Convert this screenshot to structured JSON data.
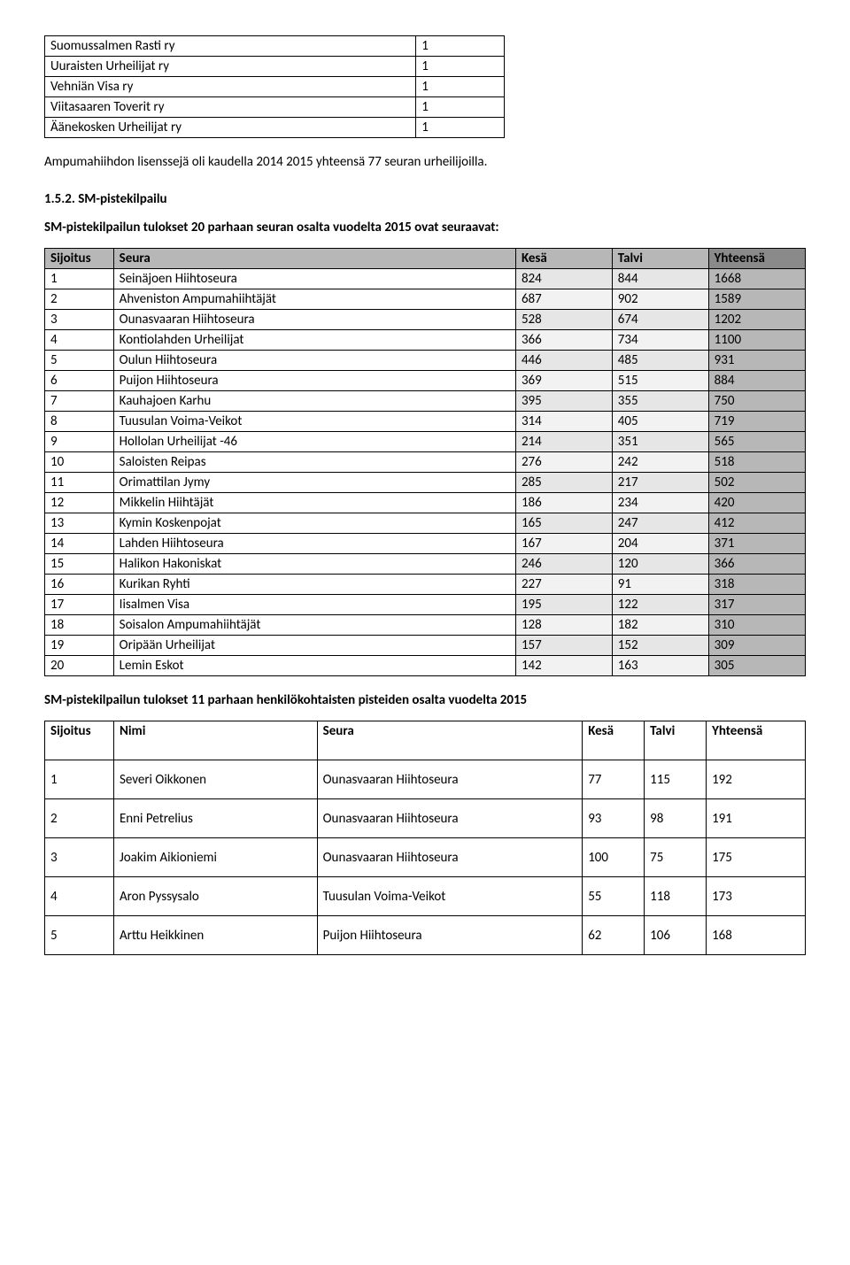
{
  "small_table": {
    "rows": [
      [
        "Suomussalmen Rasti ry",
        "1"
      ],
      [
        "Uuraisten Urheilijat ry",
        "1"
      ],
      [
        "Vehniän Visa ry",
        "1"
      ],
      [
        "Viitasaaren Toverit ry",
        "1"
      ],
      [
        "Äänekosken Urheilijat ry",
        "1"
      ]
    ]
  },
  "intro_text": "Ampumahiihdon lisenssejä oli kaudella 2014 2015 yhteensä 77 seuran urheilijoilla.",
  "section_number": "1.5.2. SM-pistekilpailu",
  "team_results_intro": "SM-pistekilpailun tulokset 20 parhaan seuran osalta vuodelta 2015 ovat seuraavat:",
  "team_table": {
    "headers": [
      "Sijoitus",
      "Seura",
      "Kesä",
      "Talvi",
      "Yhteensä"
    ],
    "header_bg": [
      "#b7b7b7",
      "#b7b7b7",
      "#b7b7b7",
      "#b7b7b7",
      "#8a8a8a"
    ],
    "rows": [
      {
        "c": [
          "1",
          "Seinäjoen Hiihtoseura",
          "824",
          "844",
          "1668"
        ],
        "bg": [
          "#ffffff",
          "#ffffff",
          "#e6e6e6",
          "#e6e6e6",
          "#b7b7b7"
        ]
      },
      {
        "c": [
          "2",
          "Ahveniston Ampumahiihtäjät",
          "687",
          "902",
          "1589"
        ],
        "bg": [
          "#ffffff",
          "#ffffff",
          "#f2f2f2",
          "#f2f2f2",
          "#b7b7b7"
        ]
      },
      {
        "c": [
          "3",
          "Ounasvaaran Hiihtoseura",
          "528",
          "674",
          "1202"
        ],
        "bg": [
          "#ffffff",
          "#ffffff",
          "#e6e6e6",
          "#e6e6e6",
          "#b7b7b7"
        ]
      },
      {
        "c": [
          "4",
          "Kontiolahden Urheilijat",
          "366",
          "734",
          "1100"
        ],
        "bg": [
          "#ffffff",
          "#ffffff",
          "#f2f2f2",
          "#f2f2f2",
          "#b7b7b7"
        ]
      },
      {
        "c": [
          "5",
          "Oulun Hiihtoseura",
          "446",
          "485",
          "931"
        ],
        "bg": [
          "#ffffff",
          "#ffffff",
          "#e6e6e6",
          "#e6e6e6",
          "#b7b7b7"
        ]
      },
      {
        "c": [
          "6",
          "Puijon Hiihtoseura",
          "369",
          "515",
          "884"
        ],
        "bg": [
          "#ffffff",
          "#ffffff",
          "#f2f2f2",
          "#f2f2f2",
          "#b7b7b7"
        ]
      },
      {
        "c": [
          "7",
          "Kauhajoen Karhu",
          "395",
          "355",
          "750"
        ],
        "bg": [
          "#ffffff",
          "#ffffff",
          "#e6e6e6",
          "#e6e6e6",
          "#b7b7b7"
        ]
      },
      {
        "c": [
          "8",
          "Tuusulan Voima-Veikot",
          "314",
          "405",
          "719"
        ],
        "bg": [
          "#ffffff",
          "#ffffff",
          "#f2f2f2",
          "#f2f2f2",
          "#b7b7b7"
        ]
      },
      {
        "c": [
          "9",
          "Hollolan Urheilijat -46",
          "214",
          "351",
          "565"
        ],
        "bg": [
          "#ffffff",
          "#ffffff",
          "#e6e6e6",
          "#e6e6e6",
          "#b7b7b7"
        ]
      },
      {
        "c": [
          "10",
          "Saloisten Reipas",
          "276",
          "242",
          "518"
        ],
        "bg": [
          "#ffffff",
          "#ffffff",
          "#f2f2f2",
          "#f2f2f2",
          "#b7b7b7"
        ]
      },
      {
        "c": [
          "11",
          "Orimattilan Jymy",
          "285",
          "217",
          "502"
        ],
        "bg": [
          "#ffffff",
          "#ffffff",
          "#e6e6e6",
          "#e6e6e6",
          "#b7b7b7"
        ]
      },
      {
        "c": [
          "12",
          "Mikkelin Hiihtäjät",
          "186",
          "234",
          "420"
        ],
        "bg": [
          "#ffffff",
          "#ffffff",
          "#f2f2f2",
          "#f2f2f2",
          "#b7b7b7"
        ]
      },
      {
        "c": [
          "13",
          "Kymin Koskenpojat",
          "165",
          "247",
          "412"
        ],
        "bg": [
          "#ffffff",
          "#ffffff",
          "#e6e6e6",
          "#e6e6e6",
          "#b7b7b7"
        ]
      },
      {
        "c": [
          "14",
          "Lahden Hiihtoseura",
          "167",
          "204",
          "371"
        ],
        "bg": [
          "#ffffff",
          "#ffffff",
          "#f2f2f2",
          "#f2f2f2",
          "#b7b7b7"
        ]
      },
      {
        "c": [
          "15",
          "Halikon Hakoniskat",
          "246",
          "120",
          "366"
        ],
        "bg": [
          "#ffffff",
          "#ffffff",
          "#e6e6e6",
          "#e6e6e6",
          "#b7b7b7"
        ]
      },
      {
        "c": [
          "16",
          "Kurikan Ryhti",
          "227",
          "91",
          "318"
        ],
        "bg": [
          "#ffffff",
          "#ffffff",
          "#f2f2f2",
          "#f2f2f2",
          "#b7b7b7"
        ]
      },
      {
        "c": [
          "17",
          "Iisalmen Visa",
          "195",
          "122",
          "317"
        ],
        "bg": [
          "#ffffff",
          "#ffffff",
          "#e6e6e6",
          "#e6e6e6",
          "#b7b7b7"
        ]
      },
      {
        "c": [
          "18",
          "Soisalon Ampumahiihtäjät",
          "128",
          "182",
          "310"
        ],
        "bg": [
          "#ffffff",
          "#ffffff",
          "#f2f2f2",
          "#f2f2f2",
          "#b7b7b7"
        ]
      },
      {
        "c": [
          "19",
          "Oripään Urheilijat",
          "157",
          "152",
          "309"
        ],
        "bg": [
          "#ffffff",
          "#ffffff",
          "#e6e6e6",
          "#e6e6e6",
          "#b7b7b7"
        ]
      },
      {
        "c": [
          "20",
          "Lemin Eskot",
          "142",
          "163",
          "305"
        ],
        "bg": [
          "#ffffff",
          "#ffffff",
          "#f2f2f2",
          "#f2f2f2",
          "#b7b7b7"
        ]
      }
    ]
  },
  "personal_intro": "SM-pistekilpailun tulokset 11 parhaan henkilökohtaisten pisteiden osalta vuodelta 2015",
  "personal_table": {
    "headers": [
      "Sijoitus",
      "Nimi",
      "Seura",
      "Kesä",
      "Talvi",
      "Yhteensä"
    ],
    "rows": [
      [
        "1",
        "Severi Oikkonen",
        "Ounasvaaran Hiihtoseura",
        "77",
        "115",
        "192"
      ],
      [
        "2",
        "Enni Petrelius",
        "Ounasvaaran Hiihtoseura",
        "93",
        "98",
        "191"
      ],
      [
        "3",
        "Joakim Aikioniemi",
        "Ounasvaaran Hiihtoseura",
        "100",
        "75",
        "175"
      ],
      [
        "4",
        "Aron Pyssysalo",
        "Tuusulan Voima-Veikot",
        "55",
        "118",
        "173"
      ],
      [
        "5",
        "Arttu Heikkinen",
        "Puijon Hiihtoseura",
        "62",
        "106",
        "168"
      ]
    ]
  }
}
